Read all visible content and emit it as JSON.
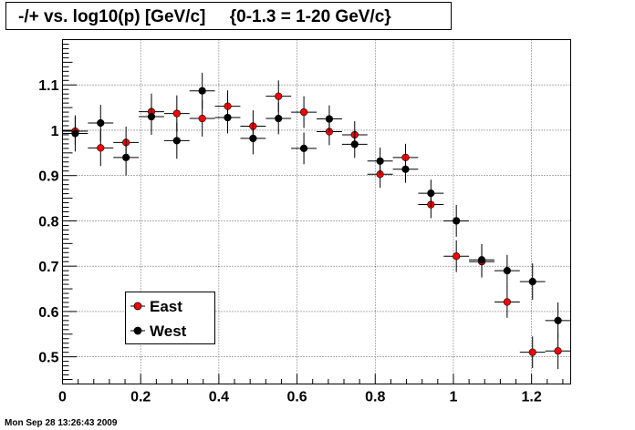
{
  "header": {
    "title": "-/+ vs. log10(p) [GeV/c]     {0-1.3 = 1-20 GeV/c}"
  },
  "footer": {
    "timestamp": "Mon Sep 28 13:26:43 2009"
  },
  "chart_data": {
    "type": "scatter",
    "title": "-/+ vs. log10(p) [GeV/c]     {0-1.3 = 1-20 GeV/c}",
    "xlabel": "",
    "ylabel": "",
    "xlim": [
      0,
      1.3
    ],
    "ylim": [
      0.44,
      1.2
    ],
    "grid": true,
    "legend_position": "bottom-left",
    "x_ticks": [
      0,
      0.2,
      0.4,
      0.6,
      0.8,
      1,
      1.2
    ],
    "x_tick_labels": [
      "0",
      "0.2",
      "0.4",
      "0.6",
      "0.8",
      "1",
      "1.2"
    ],
    "y_ticks": [
      0.5,
      0.6,
      0.7,
      0.8,
      0.9,
      1,
      1.1
    ],
    "y_tick_labels": [
      "0.5",
      "0.6",
      "0.7",
      "0.8",
      "0.9",
      "1",
      "1.1"
    ],
    "x_error": 0.0325,
    "series": [
      {
        "name": "East",
        "color": "#ff0000",
        "x": [
          0.0325,
          0.0975,
          0.1625,
          0.2275,
          0.2925,
          0.3575,
          0.4225,
          0.4875,
          0.5525,
          0.6175,
          0.6825,
          0.7475,
          0.8125,
          0.8775,
          0.9425,
          1.0075,
          1.0725,
          1.1375,
          1.2025,
          1.2675
        ],
        "y": [
          0.998,
          0.961,
          0.973,
          1.041,
          1.037,
          1.026,
          1.053,
          1.009,
          1.075,
          1.04,
          0.997,
          0.99,
          0.903,
          0.94,
          0.836,
          0.722,
          0.71,
          0.621,
          0.51,
          0.513
        ],
        "y_err": [
          0.03,
          0.04,
          0.035,
          0.04,
          0.04,
          0.04,
          0.035,
          0.035,
          0.035,
          0.035,
          0.03,
          0.03,
          0.03,
          0.03,
          0.03,
          0.035,
          0.035,
          0.035,
          0.035,
          0.04
        ]
      },
      {
        "name": "West",
        "color": "#000000",
        "x": [
          0.0325,
          0.0975,
          0.1625,
          0.2275,
          0.2925,
          0.3575,
          0.4225,
          0.4875,
          0.5525,
          0.6175,
          0.6825,
          0.7475,
          0.8125,
          0.8775,
          0.9425,
          1.0075,
          1.0725,
          1.1375,
          1.2025,
          1.2675
        ],
        "y": [
          0.993,
          1.016,
          0.94,
          1.03,
          0.977,
          1.087,
          1.028,
          0.982,
          1.026,
          0.96,
          1.025,
          0.969,
          0.932,
          0.914,
          0.861,
          0.8,
          0.714,
          0.69,
          0.666,
          0.58
        ],
        "y_err": [
          0.04,
          0.04,
          0.04,
          0.04,
          0.04,
          0.04,
          0.035,
          0.035,
          0.035,
          0.035,
          0.03,
          0.03,
          0.03,
          0.03,
          0.03,
          0.035,
          0.035,
          0.035,
          0.04,
          0.04
        ]
      }
    ]
  }
}
